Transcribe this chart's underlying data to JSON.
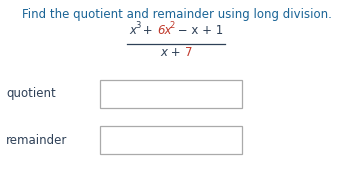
{
  "title": "Find the quotient and remainder using long division.",
  "title_color": "#1a6496",
  "title_fontsize": 8.5,
  "num_pieces": [
    {
      "text": "x",
      "color": "#2e4057",
      "italic": true,
      "sup": false
    },
    {
      "text": "3",
      "color": "#2e4057",
      "italic": false,
      "sup": true
    },
    {
      "text": " + ",
      "color": "#2e4057",
      "italic": false,
      "sup": false
    },
    {
      "text": "6x",
      "color": "#c0392b",
      "italic": true,
      "sup": false
    },
    {
      "text": "2",
      "color": "#c0392b",
      "italic": false,
      "sup": true
    },
    {
      "text": " − x + 1",
      "color": "#2e4057",
      "italic": false,
      "sup": false
    }
  ],
  "den_pieces": [
    {
      "text": "x + ",
      "color": "#2e4057",
      "italic": true
    },
    {
      "text": "7",
      "color": "#c0392b",
      "italic": false
    }
  ],
  "base_fs": 8.5,
  "sup_fs": 6.0,
  "label_quotient": "quotient",
  "label_remainder": "remainder",
  "label_color": "#2e4057",
  "label_fontsize": 8.5,
  "box_facecolor": "white",
  "box_edgecolor": "#aaaaaa",
  "background_color": "white",
  "fig_w": 3.53,
  "fig_h": 1.69,
  "dpi": 100
}
